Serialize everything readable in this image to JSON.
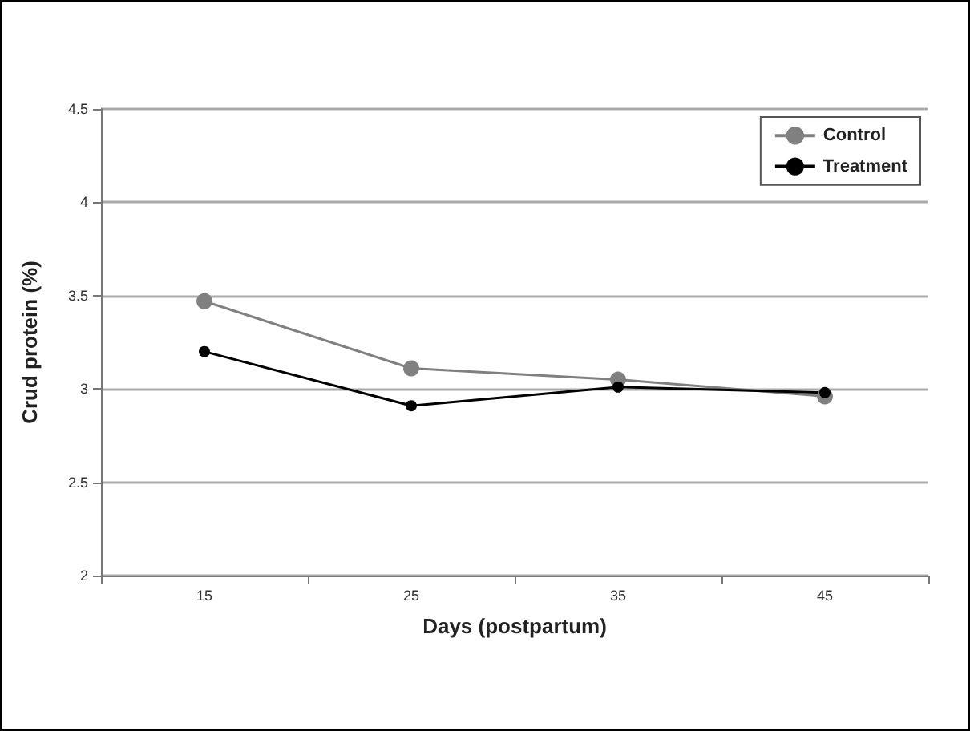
{
  "chart_data": {
    "type": "line",
    "xlabel": "Days (postpartum)",
    "ylabel": "Crud protein (%)",
    "categories": [
      "15",
      "25",
      "35",
      "45"
    ],
    "series": [
      {
        "name": "Control",
        "color": "#808080",
        "values": [
          3.47,
          3.11,
          3.05,
          2.96
        ]
      },
      {
        "name": "Treatment",
        "color": "#000000",
        "values": [
          3.2,
          2.91,
          3.01,
          2.98
        ]
      }
    ],
    "ylim": [
      2,
      4.5
    ],
    "yticks": [
      2,
      2.5,
      3,
      3.5,
      4,
      4.5
    ],
    "grid": "y",
    "legend": "top right",
    "marker": "circle",
    "line_style": "solid"
  }
}
